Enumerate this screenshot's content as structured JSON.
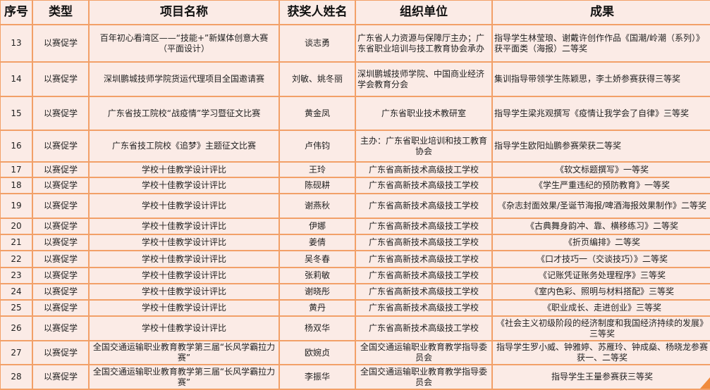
{
  "headers": [
    "序号",
    "类型",
    "项目名称",
    "获奖人姓名",
    "组织单位",
    "成果"
  ],
  "rows": [
    {
      "no": "13",
      "type": "以赛促学",
      "project": "百年初心看湾区——“技能+”新媒体创意大赛\n（平面设计）",
      "winner": "谈志勇",
      "org": "广东省人力资源与保障厅主办；广东省职业培训与技工教育协会承办",
      "result": "指导学生林莹琅、谢戴许创作作品《国潮/岭潮（系列）》获平面类（海报）二等奖"
    },
    {
      "no": "14",
      "type": "以赛促学",
      "project": "深圳鹏城技师学院货运代理项目全国邀请赛",
      "winner": "刘敏、姚冬丽",
      "org": "深圳鹏城技师学院、中国商业经济学会教育分会",
      "result": "集训指导带领学生陈颖思，李土娇参赛获得三等奖"
    },
    {
      "no": "15",
      "type": "以赛促学",
      "project": "广东省技工院校“战疫情”学习暨征文比赛",
      "winner": "黄金凤",
      "org": "广东省职业技术教研室",
      "result": "指导学生梁兆观撰写《疫情让我学会了自律》三等奖"
    },
    {
      "no": "16",
      "type": "以赛促学",
      "project": "广东省技工院校《追梦》主题征文比赛",
      "winner": "卢伟钧",
      "org": "主办：广东省职业培训和技工教育协会",
      "result": "指导学生欧阳灿鹏参赛荣获二等奖"
    },
    {
      "no": "17",
      "type": "以赛促学",
      "project": "学校十佳教学设计评比",
      "winner": "王玲",
      "org": "广东省高新技术高级技工学校",
      "result": "《软文标题撰写》一等奖"
    },
    {
      "no": "18",
      "type": "以赛促学",
      "project": "学校十佳教学设计评比",
      "winner": "陈砚耕",
      "org": "广东省高新技术高级技工学校",
      "result": "《学生严重违纪的预防教育》一等奖"
    },
    {
      "no": "19",
      "type": "以赛促学",
      "project": "学校十佳教学设计评比",
      "winner": "谢燕秋",
      "org": "广东省高新技术高级技工学校",
      "result": "《杂志封面效果/圣诞节海报/啤酒海报效果制作》二等奖"
    },
    {
      "no": "20",
      "type": "以赛促学",
      "project": "学校十佳教学设计评比",
      "winner": "伊娜",
      "org": "广东省高新技术高级技工学校",
      "result": "《古典舞身韵冲、靠、横移练习》二等奖"
    },
    {
      "no": "21",
      "type": "以赛促学",
      "project": "学校十佳教学设计评比",
      "winner": "姜倩",
      "org": "广东省高新技术高级技工学校",
      "result": "《折页编排》二等奖"
    },
    {
      "no": "22",
      "type": "以赛促学",
      "project": "学校十佳教学设计评比",
      "winner": "吴冬春",
      "org": "广东省高新技术高级技工学校",
      "result": "《口才技巧一（交谈技巧）》二等奖"
    },
    {
      "no": "23",
      "type": "以赛促学",
      "project": "学校十佳教学设计评比",
      "winner": "张莉敏",
      "org": "广东省高新技术高级技工学校",
      "result": "《记账凭证账务处理程序》三等奖"
    },
    {
      "no": "24",
      "type": "以赛促学",
      "project": "学校十佳教学设计评比",
      "winner": "谢晓彤",
      "org": "广东省高新技术高级技工学校",
      "result": "《室内色彩、照明与材料搭配》三等奖"
    },
    {
      "no": "25",
      "type": "以赛促学",
      "project": "学校十佳教学设计评比",
      "winner": "黄丹",
      "org": "广东省高新技术高级技工学校",
      "result": "《职业成长、走进创业》三等奖"
    },
    {
      "no": "26",
      "type": "以赛促学",
      "project": "学校十佳教学设计评比",
      "winner": "杨双华",
      "org": "广东省高新技术高级技工学校",
      "result": "《社会主义初级阶段的经济制度和我国经济持续的发展》三等奖"
    },
    {
      "no": "27",
      "type": "以赛促学",
      "project": "全国交通运输职业教育教学第三届“长风学霸拉力赛”",
      "winner": "欧婉贞",
      "org": "全国交通运输职业教育教学指导委员会",
      "result": "指导学生罗小威、钟雅婷、苏雁玲、钟成燊、杨晓龙参赛获一、二等奖"
    },
    {
      "no": "28",
      "type": "以赛促学",
      "project": "全国交通运输职业教育教学第三届“长风学霸拉力赛”",
      "winner": "李振华",
      "org": "全国交通运输职业教育教学指导委员会",
      "result": "指导学生王量参赛获三等奖"
    }
  ],
  "colors": {
    "background": "#fbebe6",
    "border": "#f2a068",
    "accent": "#f08a3c"
  }
}
